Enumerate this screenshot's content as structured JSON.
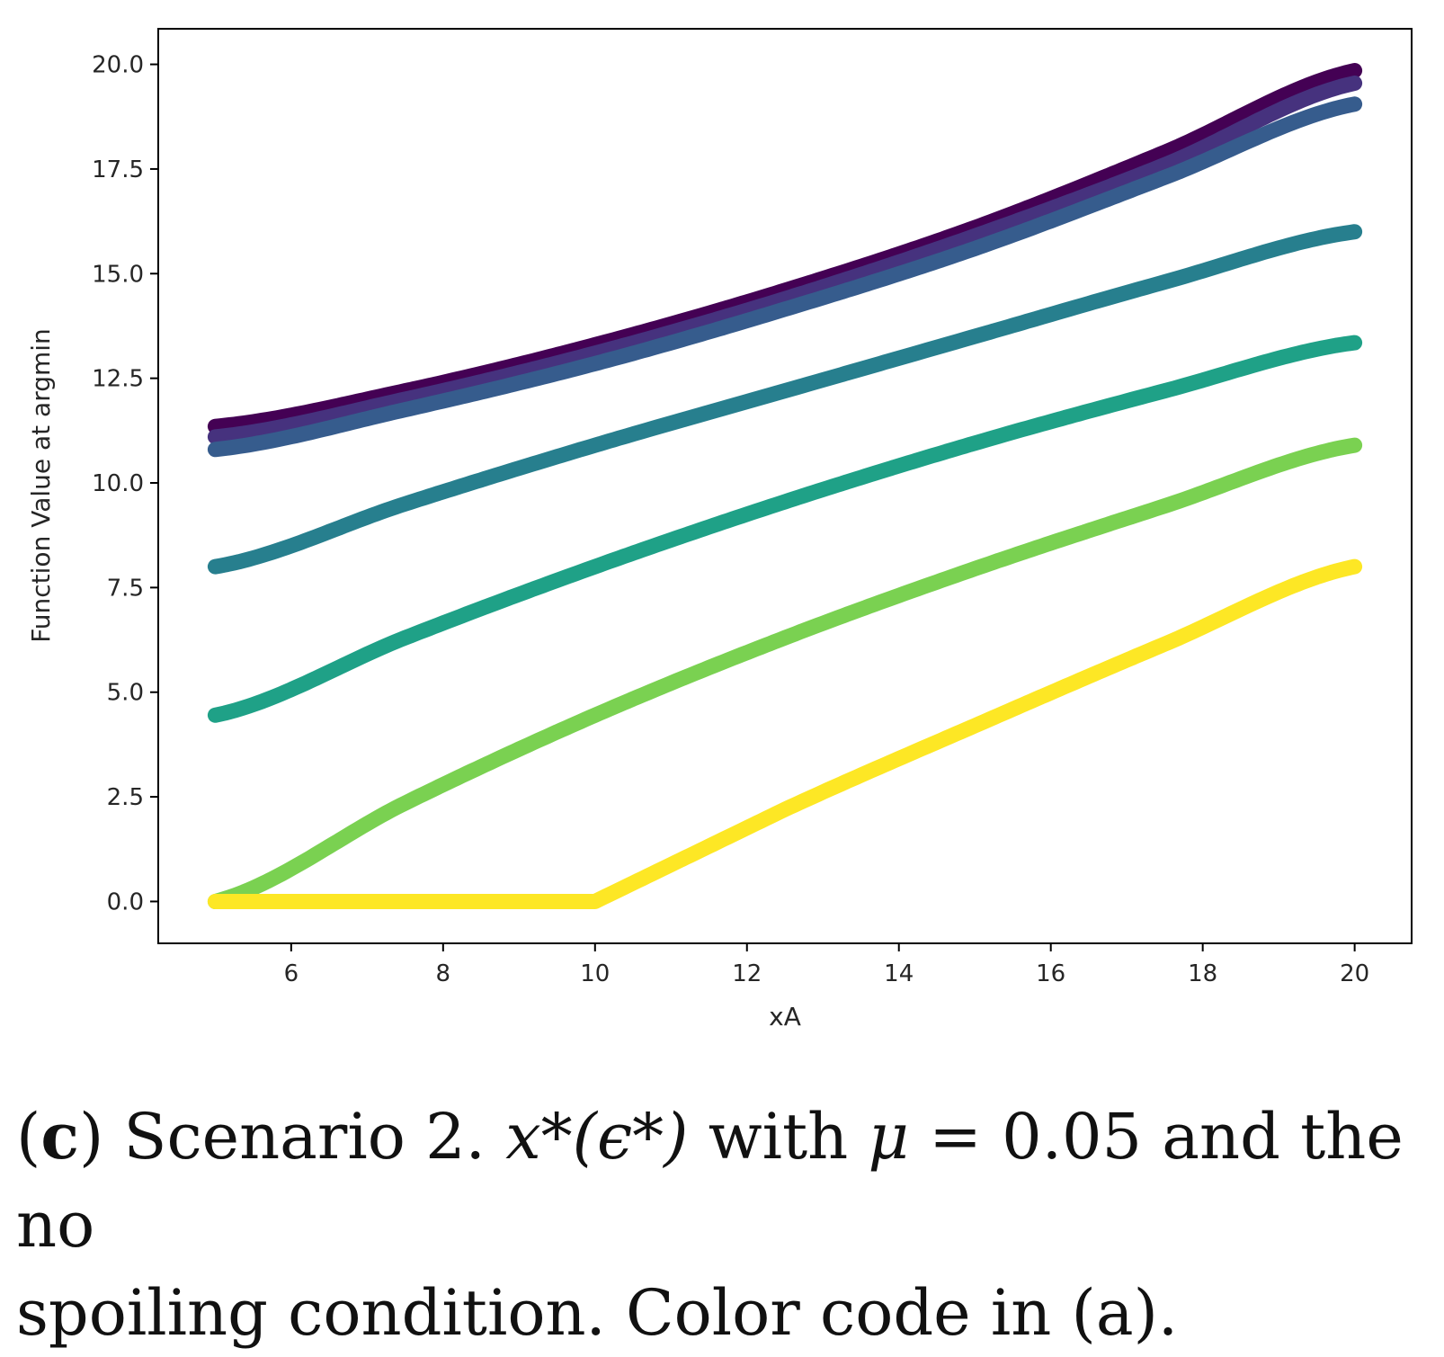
{
  "chart_data": {
    "type": "scatter",
    "xlabel": "xA",
    "ylabel": "Function Value at argmin",
    "xlim": [
      4.25,
      20.75
    ],
    "ylim": [
      -1.0,
      20.85
    ],
    "xticks": [
      "6",
      "8",
      "10",
      "12",
      "14",
      "16",
      "18",
      "20"
    ],
    "yticks": [
      "0.0",
      "2.5",
      "5.0",
      "7.5",
      "10.0",
      "12.5",
      "15.0",
      "17.5",
      "20.0"
    ],
    "grid": false,
    "series": [
      {
        "name": "series-1",
        "color": "#440154",
        "x": [
          5,
          7.5,
          10,
          12.5,
          15,
          17.5,
          20
        ],
        "y": [
          11.35,
          12.2,
          13.3,
          14.6,
          16.1,
          17.9,
          19.85
        ]
      },
      {
        "name": "series-2",
        "color": "#46327e",
        "x": [
          5,
          7.5,
          10,
          12.5,
          15,
          17.5,
          20
        ],
        "y": [
          11.1,
          12.0,
          13.1,
          14.4,
          15.9,
          17.6,
          19.55
        ]
      },
      {
        "name": "series-3",
        "color": "#365c8d",
        "x": [
          5,
          7.5,
          10,
          12.5,
          15,
          17.5,
          20
        ],
        "y": [
          10.8,
          11.75,
          12.85,
          14.15,
          15.6,
          17.3,
          19.05
        ]
      },
      {
        "name": "series-4",
        "color": "#277f8e",
        "x": [
          5,
          7.5,
          10,
          12.5,
          15,
          17.5,
          20
        ],
        "y": [
          8.0,
          9.5,
          10.9,
          12.2,
          13.5,
          14.8,
          16.0
        ]
      },
      {
        "name": "series-5",
        "color": "#1fa187",
        "x": [
          5,
          7.5,
          10,
          12.5,
          15,
          17.5,
          20
        ],
        "y": [
          4.45,
          6.3,
          8.0,
          9.55,
          10.95,
          12.2,
          13.35
        ]
      },
      {
        "name": "series-6",
        "color": "#7ad151",
        "x": [
          5,
          7.5,
          10,
          12.5,
          15,
          17.5,
          20
        ],
        "y": [
          0.0,
          2.35,
          4.45,
          6.3,
          7.95,
          9.45,
          10.9
        ]
      },
      {
        "name": "series-7",
        "color": "#fde725",
        "x": [
          5,
          7.5,
          10,
          12.5,
          15,
          17.5,
          20
        ],
        "y": [
          0.0,
          0.0,
          0.0,
          2.2,
          4.2,
          6.15,
          8.0
        ]
      }
    ]
  },
  "caption": {
    "label": "c",
    "text_before": "Scenario 2. ",
    "math": "x*(ϵ*)",
    "text_mid": " with ",
    "mu": "μ",
    "equals": " = 0.05",
    "text_after_line1": " and the no",
    "line2": "spoiling condition. Color code in (a)."
  }
}
